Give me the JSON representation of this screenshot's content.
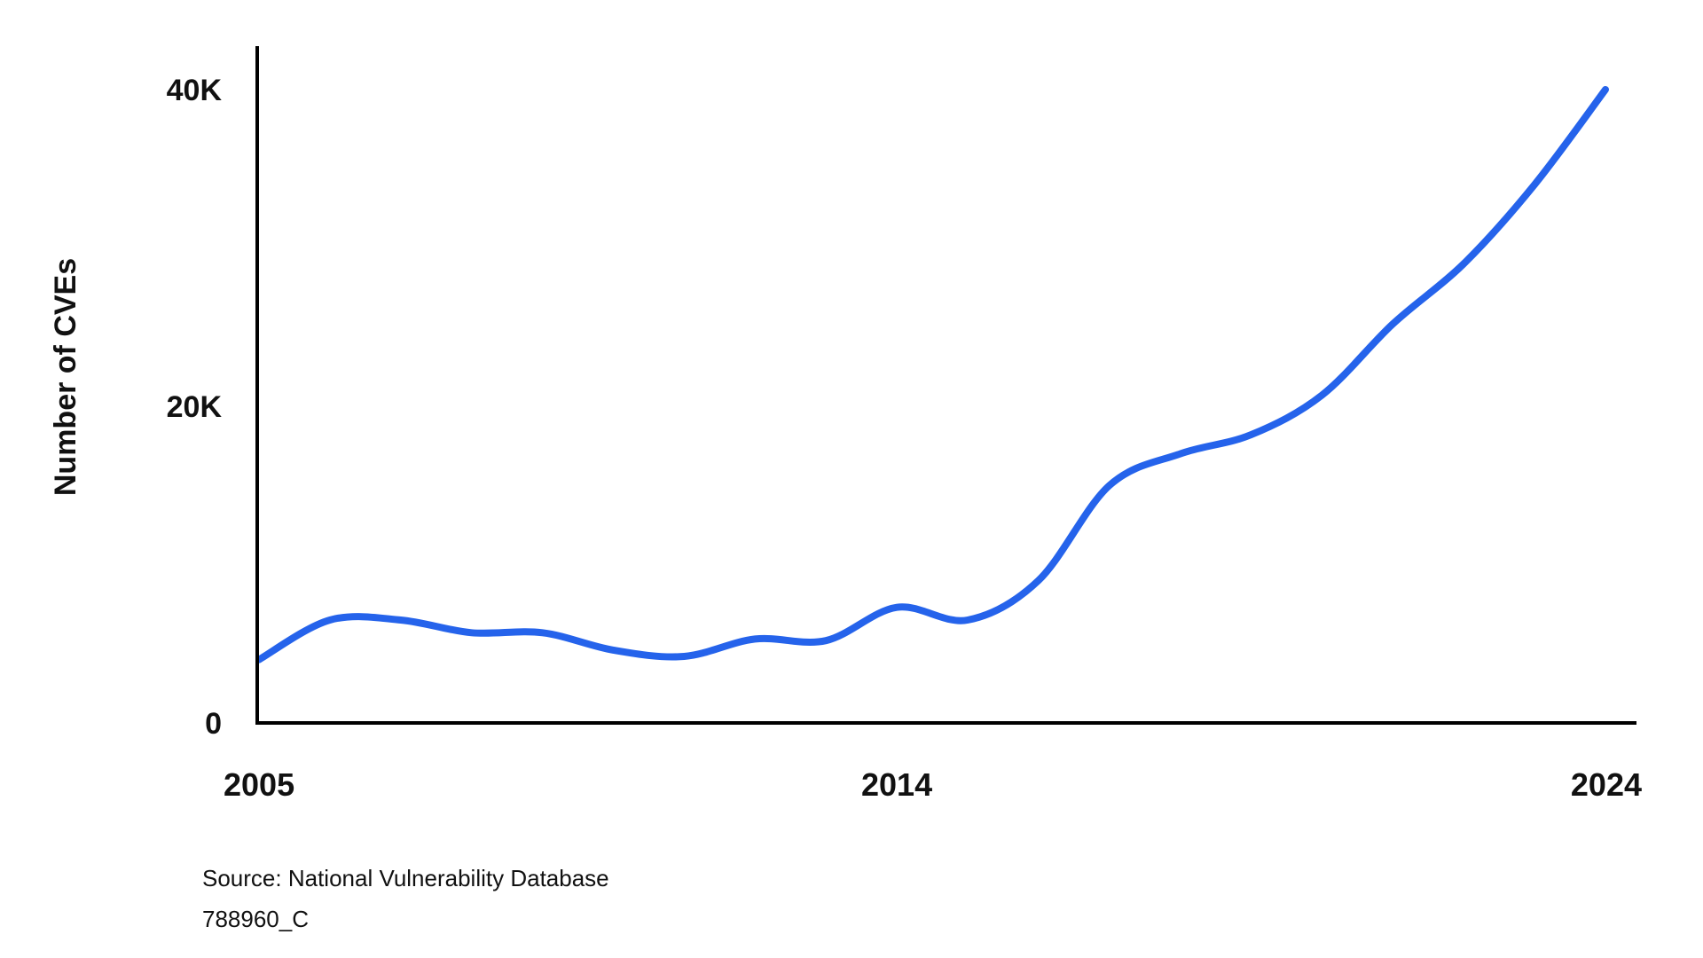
{
  "chart_data": {
    "type": "line",
    "title": "",
    "xlabel": "",
    "ylabel": "Number of CVEs",
    "xlim": [
      2005,
      2024
    ],
    "ylim": [
      0,
      40000
    ],
    "x_ticks": [
      2005,
      2014,
      2024
    ],
    "x_tick_labels": [
      "2005",
      "2014",
      "2024"
    ],
    "y_ticks": [
      0,
      20000,
      40000
    ],
    "y_tick_labels": [
      "0",
      "20K",
      "40K"
    ],
    "grid": false,
    "legend": "none",
    "colors": {
      "line": "#2563eb",
      "axis": "#000000"
    },
    "series": [
      {
        "x": [
          2005,
          2006,
          2007,
          2008,
          2009,
          2010,
          2011,
          2012,
          2013,
          2014,
          2015,
          2016,
          2017,
          2018,
          2019,
          2020,
          2021,
          2022,
          2023,
          2024
        ],
        "values": [
          4000,
          6500,
          6500,
          5700,
          5700,
          4600,
          4200,
          5300,
          5200,
          7300,
          6500,
          9000,
          15000,
          17000,
          18200,
          20700,
          25200,
          29000,
          34000,
          40000
        ]
      }
    ]
  },
  "footer": {
    "source": "Source: National Vulnerability Database",
    "figure_id": "788960_C"
  }
}
